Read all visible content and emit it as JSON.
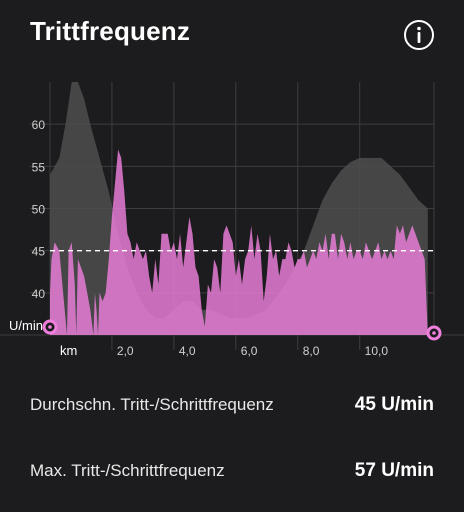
{
  "header": {
    "title": "Trittfrequenz",
    "info_icon": "info-circle-icon"
  },
  "chart_data": {
    "type": "area",
    "ylabel": "U/min",
    "xlabel": "km",
    "xlim": [
      0,
      12.4
    ],
    "ylim": [
      35,
      65
    ],
    "y_ticks": [
      "40",
      "45",
      "50",
      "55",
      "60"
    ],
    "x_ticks": [
      "2,0",
      "4,0",
      "6,0",
      "8,0",
      "10,0"
    ],
    "average_line": 45,
    "colors": {
      "cadence": "#ee7fdc",
      "elevation": "#4d4d4f",
      "average": "#ffffff",
      "grid": "#3d3d3f",
      "marker": "#ee7fdc"
    },
    "series": [
      {
        "values": [
          [
            0,
            40
          ],
          [
            0.05,
            44
          ],
          [
            0.15,
            46
          ],
          [
            0.3,
            45
          ],
          [
            0.45,
            39
          ],
          [
            0.55,
            35
          ],
          [
            0.6,
            45
          ],
          [
            0.7,
            46
          ],
          [
            0.8,
            41
          ],
          [
            0.85,
            35
          ],
          [
            0.9,
            44
          ],
          [
            1.0,
            43
          ],
          [
            1.1,
            42
          ],
          [
            1.2,
            40
          ],
          [
            1.3,
            38
          ],
          [
            1.4,
            35
          ],
          [
            1.45,
            40
          ],
          [
            1.5,
            38
          ],
          [
            1.55,
            35
          ],
          [
            1.6,
            40
          ],
          [
            1.7,
            39
          ],
          [
            1.8,
            40
          ],
          [
            1.9,
            44
          ],
          [
            2.0,
            49
          ],
          [
            2.1,
            53
          ],
          [
            2.2,
            57
          ],
          [
            2.3,
            56
          ],
          [
            2.4,
            52
          ],
          [
            2.5,
            47
          ],
          [
            2.6,
            46
          ],
          [
            2.7,
            44
          ],
          [
            2.8,
            46
          ],
          [
            2.9,
            45
          ],
          [
            3.0,
            44
          ],
          [
            3.1,
            45
          ],
          [
            3.2,
            42
          ],
          [
            3.3,
            40
          ],
          [
            3.4,
            44
          ],
          [
            3.5,
            41
          ],
          [
            3.6,
            47
          ],
          [
            3.7,
            47
          ],
          [
            3.8,
            47
          ],
          [
            3.9,
            45
          ],
          [
            4.0,
            46
          ],
          [
            4.1,
            44
          ],
          [
            4.2,
            47
          ],
          [
            4.3,
            43
          ],
          [
            4.4,
            46
          ],
          [
            4.5,
            49
          ],
          [
            4.6,
            47
          ],
          [
            4.7,
            43
          ],
          [
            4.8,
            42
          ],
          [
            4.9,
            38
          ],
          [
            5.0,
            36
          ],
          [
            5.1,
            41
          ],
          [
            5.2,
            40
          ],
          [
            5.3,
            44
          ],
          [
            5.4,
            43
          ],
          [
            5.5,
            40
          ],
          [
            5.6,
            47
          ],
          [
            5.7,
            48
          ],
          [
            5.8,
            47
          ],
          [
            5.9,
            46
          ],
          [
            6.0,
            42
          ],
          [
            6.1,
            44
          ],
          [
            6.2,
            41
          ],
          [
            6.3,
            44
          ],
          [
            6.4,
            45
          ],
          [
            6.5,
            48
          ],
          [
            6.6,
            44
          ],
          [
            6.7,
            47
          ],
          [
            6.8,
            45
          ],
          [
            6.9,
            39
          ],
          [
            7.0,
            42
          ],
          [
            7.1,
            47
          ],
          [
            7.2,
            44
          ],
          [
            7.3,
            45
          ],
          [
            7.4,
            42
          ],
          [
            7.5,
            44
          ],
          [
            7.6,
            44
          ],
          [
            7.7,
            46
          ],
          [
            7.8,
            45
          ],
          [
            7.9,
            43
          ],
          [
            8.0,
            44
          ],
          [
            8.1,
            44
          ],
          [
            8.2,
            45
          ],
          [
            8.3,
            43
          ],
          [
            8.4,
            44
          ],
          [
            8.5,
            45
          ],
          [
            8.6,
            44
          ],
          [
            8.7,
            46
          ],
          [
            8.8,
            45
          ],
          [
            8.9,
            47
          ],
          [
            9.0,
            44
          ],
          [
            9.1,
            47
          ],
          [
            9.2,
            47
          ],
          [
            9.3,
            44
          ],
          [
            9.4,
            47
          ],
          [
            9.5,
            46
          ],
          [
            9.6,
            44
          ],
          [
            9.7,
            46
          ],
          [
            9.8,
            44
          ],
          [
            9.9,
            45
          ],
          [
            10.0,
            45
          ],
          [
            10.1,
            44
          ],
          [
            10.2,
            46
          ],
          [
            10.3,
            45
          ],
          [
            10.4,
            44
          ],
          [
            10.5,
            45
          ],
          [
            10.6,
            46
          ],
          [
            10.7,
            44
          ],
          [
            10.8,
            45
          ],
          [
            10.9,
            44
          ],
          [
            11.0,
            45
          ],
          [
            11.1,
            44
          ],
          [
            11.2,
            48
          ],
          [
            11.3,
            47
          ],
          [
            11.4,
            48
          ],
          [
            11.5,
            46
          ],
          [
            11.6,
            47
          ],
          [
            11.7,
            48
          ],
          [
            11.8,
            47
          ],
          [
            11.9,
            46
          ],
          [
            12.0,
            45
          ],
          [
            12.1,
            44
          ],
          [
            12.2,
            35
          ]
        ]
      },
      {
        "values": [
          [
            0,
            54
          ],
          [
            0.3,
            56
          ],
          [
            0.5,
            60
          ],
          [
            0.7,
            65
          ],
          [
            0.9,
            65
          ],
          [
            1.1,
            63
          ],
          [
            1.3,
            60
          ],
          [
            1.6,
            56
          ],
          [
            1.9,
            52
          ],
          [
            2.2,
            47
          ],
          [
            2.5,
            43
          ],
          [
            2.8,
            40
          ],
          [
            3.1,
            38
          ],
          [
            3.4,
            37
          ],
          [
            3.7,
            37
          ],
          [
            4.0,
            38
          ],
          [
            4.3,
            39
          ],
          [
            4.6,
            39
          ],
          [
            4.9,
            38
          ],
          [
            5.2,
            38
          ],
          [
            5.5,
            37.5
          ],
          [
            5.8,
            37
          ],
          [
            6.1,
            37
          ],
          [
            6.4,
            37
          ],
          [
            6.7,
            37.5
          ],
          [
            7.0,
            38
          ],
          [
            7.3,
            39.5
          ],
          [
            7.6,
            41
          ],
          [
            7.9,
            43
          ],
          [
            8.2,
            45
          ],
          [
            8.5,
            48
          ],
          [
            8.8,
            51
          ],
          [
            9.1,
            53
          ],
          [
            9.4,
            54.5
          ],
          [
            9.7,
            55.5
          ],
          [
            10.0,
            56
          ],
          [
            10.4,
            56
          ],
          [
            10.7,
            56
          ],
          [
            11.0,
            55
          ],
          [
            11.3,
            54
          ],
          [
            11.6,
            52.5
          ],
          [
            11.9,
            51
          ],
          [
            12.2,
            50
          ]
        ]
      }
    ]
  },
  "stats": [
    {
      "label": "Durchschn. Tritt-/Schrittfrequenz",
      "value": "45 U/min"
    },
    {
      "label": "Max. Tritt-/Schrittfrequenz",
      "value": "57 U/min"
    }
  ]
}
